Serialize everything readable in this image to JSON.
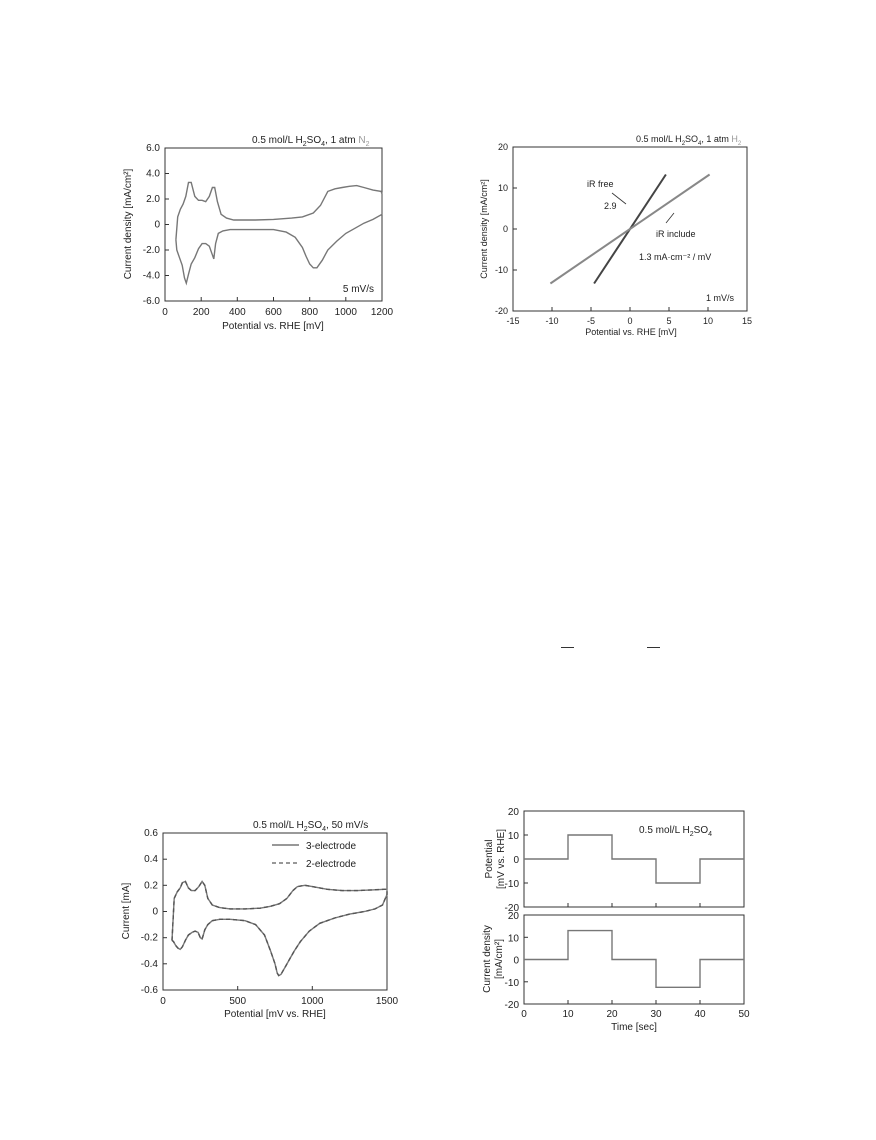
{
  "chart_data": [
    {
      "type": "line",
      "title": "0.5 mol/L H₂SO₄, 1 atm N₂",
      "title_parts": [
        "0.5 mol/L H",
        "2",
        "SO",
        "4",
        ", 1 atm ",
        "N",
        "2"
      ],
      "xlabel": "Potential vs. RHE [mV]",
      "ylabel": "Current density [mA/cm²]",
      "annotation": "5 mV/s",
      "xlim": [
        0,
        1200
      ],
      "ylim": [
        -6,
        6
      ],
      "x_ticks": [
        0,
        200,
        400,
        600,
        800,
        1000,
        1200
      ],
      "y_ticks": [
        -6,
        -4,
        -2,
        0,
        2,
        4,
        6
      ],
      "x_tick_labels": [
        "0",
        "200",
        "400",
        "600",
        "800",
        "1000",
        "1200"
      ],
      "y_tick_labels": [
        "-6.0",
        "-4.0",
        "-2.0",
        "0",
        "2.0",
        "4.0",
        "6.0"
      ],
      "series": [
        {
          "x": [
            60,
            70,
            85,
            100,
            115,
            130,
            145,
            165,
            185,
            205,
            225,
            245,
            262,
            275,
            290,
            310,
            340,
            380,
            420,
            500,
            600,
            700,
            760,
            820,
            860,
            900,
            940,
            980,
            1020,
            1060,
            1100,
            1150,
            1195,
            1200,
            1200,
            1150,
            1100,
            1050,
            1000,
            950,
            900,
            870,
            840,
            820,
            800,
            780,
            760,
            720,
            670,
            600,
            500,
            420,
            360,
            320,
            295,
            280,
            270,
            260,
            245,
            225,
            205,
            185,
            165,
            145,
            130,
            118,
            108,
            95,
            80,
            65,
            60
          ],
          "y": [
            -1.2,
            0.6,
            1.2,
            1.6,
            2.2,
            3.3,
            3.3,
            2.2,
            1.9,
            1.9,
            1.8,
            2.2,
            2.9,
            2.9,
            1.8,
            0.8,
            0.5,
            0.35,
            0.35,
            0.35,
            0.4,
            0.5,
            0.6,
            0.9,
            1.5,
            2.6,
            2.8,
            2.9,
            3.0,
            3.05,
            2.9,
            2.7,
            2.6,
            2.4,
            0.8,
            0.4,
            0.1,
            -0.3,
            -0.7,
            -1.3,
            -2.0,
            -2.8,
            -3.4,
            -3.4,
            -3.1,
            -2.5,
            -1.8,
            -1.0,
            -0.6,
            -0.4,
            -0.4,
            -0.4,
            -0.4,
            -0.5,
            -0.7,
            -1.5,
            -2.7,
            -2.3,
            -1.7,
            -1.5,
            -1.5,
            -1.9,
            -2.6,
            -3.1,
            -3.9,
            -4.6,
            -4.2,
            -3.2,
            -2.6,
            -2.0,
            -1.2
          ]
        }
      ]
    },
    {
      "type": "line",
      "title": "0.5 mol/L H₂SO₄, 1 atm H₂",
      "title_parts": [
        "0.5 mol/L H",
        "2",
        "SO",
        "4",
        ", 1 atm ",
        "H",
        "2"
      ],
      "xlabel": "Potential vs. RHE [mV]",
      "ylabel": "Current density [mA/cm²]",
      "annotation": "1 mV/s",
      "xlim": [
        -15,
        15
      ],
      "ylim": [
        -20,
        20
      ],
      "x_ticks": [
        -15,
        -10,
        -5,
        0,
        5,
        10,
        15
      ],
      "y_ticks": [
        -20,
        -10,
        0,
        10,
        20
      ],
      "x_tick_labels": [
        "-15",
        "-10",
        "-5",
        "0",
        "5",
        "10",
        "15"
      ],
      "y_tick_labels": [
        "-20",
        "-10",
        "0",
        "10",
        "20"
      ],
      "labels": [
        "iR free",
        "2.9",
        "iR include",
        "1.3 mA·cm⁻² / mV"
      ],
      "series": [
        {
          "x": [
            -4.6,
            4.6
          ],
          "y": [
            -13.3,
            13.3
          ]
        },
        {
          "x": [
            -10.2,
            10.2
          ],
          "y": [
            -13.3,
            13.3
          ]
        }
      ]
    },
    {
      "type": "line",
      "title": "0.5 mol/L H₂SO₄, 50 mV/s",
      "title_parts": [
        "0.5 mol/L H",
        "2",
        "SO",
        "4",
        ", 50 mV/s"
      ],
      "xlabel": "Potential [mV vs. RHE]",
      "ylabel": "Current [mA]",
      "xlim": [
        0,
        1500
      ],
      "ylim": [
        -0.6,
        0.6
      ],
      "x_ticks": [
        0,
        500,
        1000,
        1500
      ],
      "y_ticks": [
        -0.6,
        -0.4,
        -0.2,
        0,
        0.2,
        0.4,
        0.6
      ],
      "x_tick_labels": [
        "0",
        "500",
        "1000",
        "1500"
      ],
      "y_tick_labels": [
        "-0.6",
        "-0.4",
        "-0.2",
        "0",
        "0.2",
        "0.4",
        "0.6"
      ],
      "legend": [
        "3-electrode",
        "2-electrode"
      ],
      "series": [
        {
          "name": "3-electrode",
          "x": [
            60,
            75,
            95,
            115,
            130,
            150,
            170,
            190,
            215,
            240,
            262,
            280,
            300,
            330,
            380,
            450,
            550,
            650,
            720,
            780,
            830,
            870,
            900,
            950,
            1000,
            1100,
            1200,
            1300,
            1400,
            1480,
            1500,
            1500,
            1470,
            1420,
            1350,
            1250,
            1150,
            1050,
            980,
            920,
            880,
            850,
            820,
            800,
            790,
            775,
            765,
            750,
            720,
            680,
            620,
            550,
            450,
            380,
            330,
            300,
            280,
            270,
            262,
            250,
            235,
            215,
            195,
            170,
            150,
            130,
            115,
            100,
            85,
            70,
            60
          ],
          "y": [
            -0.22,
            0.1,
            0.15,
            0.18,
            0.22,
            0.23,
            0.18,
            0.16,
            0.16,
            0.19,
            0.23,
            0.2,
            0.1,
            0.05,
            0.03,
            0.02,
            0.02,
            0.025,
            0.04,
            0.06,
            0.1,
            0.16,
            0.19,
            0.2,
            0.19,
            0.17,
            0.16,
            0.16,
            0.165,
            0.17,
            0.17,
            0.13,
            0.05,
            0.02,
            0.0,
            -0.02,
            -0.05,
            -0.09,
            -0.15,
            -0.23,
            -0.3,
            -0.36,
            -0.42,
            -0.46,
            -0.48,
            -0.49,
            -0.47,
            -0.4,
            -0.3,
            -0.18,
            -0.1,
            -0.07,
            -0.06,
            -0.06,
            -0.07,
            -0.1,
            -0.14,
            -0.18,
            -0.21,
            -0.2,
            -0.16,
            -0.15,
            -0.16,
            -0.18,
            -0.22,
            -0.27,
            -0.29,
            -0.28,
            -0.26,
            -0.23,
            -0.22
          ]
        },
        {
          "name": "2-electrode",
          "x": [
            60,
            75,
            95,
            115,
            130,
            150,
            170,
            190,
            215,
            240,
            262,
            280,
            300,
            330,
            380,
            450,
            550,
            650,
            720,
            780,
            830,
            870,
            900,
            950,
            1000,
            1100,
            1200,
            1300,
            1400,
            1480,
            1500,
            1500,
            1470,
            1420,
            1350,
            1250,
            1150,
            1050,
            980,
            920,
            880,
            850,
            820,
            800,
            790,
            775,
            765,
            750,
            720,
            680,
            620,
            550,
            450,
            380,
            330,
            300,
            280,
            270,
            262,
            250,
            235,
            215,
            195,
            170,
            150,
            130,
            115,
            100,
            85,
            70,
            60
          ],
          "y": [
            -0.22,
            0.1,
            0.15,
            0.18,
            0.22,
            0.23,
            0.18,
            0.16,
            0.16,
            0.19,
            0.23,
            0.2,
            0.1,
            0.05,
            0.03,
            0.02,
            0.02,
            0.025,
            0.04,
            0.06,
            0.1,
            0.16,
            0.19,
            0.2,
            0.19,
            0.17,
            0.16,
            0.16,
            0.165,
            0.17,
            0.17,
            0.13,
            0.05,
            0.02,
            0.0,
            -0.02,
            -0.05,
            -0.09,
            -0.15,
            -0.23,
            -0.3,
            -0.36,
            -0.42,
            -0.46,
            -0.48,
            -0.49,
            -0.47,
            -0.4,
            -0.3,
            -0.18,
            -0.1,
            -0.07,
            -0.06,
            -0.06,
            -0.07,
            -0.1,
            -0.14,
            -0.18,
            -0.21,
            -0.2,
            -0.16,
            -0.15,
            -0.16,
            -0.18,
            -0.22,
            -0.27,
            -0.29,
            -0.28,
            -0.26,
            -0.23,
            -0.22
          ]
        }
      ]
    },
    {
      "type": "line",
      "title": "0.5 mol/L H₂SO₄",
      "title_parts": [
        "0.5 mol/L H",
        "2",
        "SO",
        "4"
      ],
      "xlabel": "",
      "ylabel": "Potential [mV vs. RHE]",
      "ylabel_lines": [
        "Potential",
        "[mV vs. RHE]"
      ],
      "xlim": [
        0,
        50
      ],
      "ylim": [
        -20,
        20
      ],
      "y_ticks": [
        -20,
        -10,
        0,
        10,
        20
      ],
      "y_tick_labels": [
        "-20",
        "-10",
        "0",
        "10",
        "20"
      ],
      "series": [
        {
          "x": [
            0,
            10,
            10,
            20,
            20,
            30,
            30,
            40,
            40,
            50
          ],
          "y": [
            0,
            0,
            10,
            10,
            0,
            0,
            -10,
            -10,
            0,
            0
          ]
        }
      ]
    },
    {
      "type": "line",
      "title": "",
      "xlabel": "Time [sec]",
      "ylabel": "Current density [mA/cm²]",
      "ylabel_lines": [
        "Current density",
        "[mA/cm²]"
      ],
      "xlim": [
        0,
        50
      ],
      "ylim": [
        -20,
        20
      ],
      "x_ticks": [
        0,
        10,
        20,
        30,
        40,
        50
      ],
      "y_ticks": [
        -20,
        -10,
        0,
        10,
        20
      ],
      "x_tick_labels": [
        "0",
        "10",
        "20",
        "30",
        "40",
        "50"
      ],
      "y_tick_labels": [
        "-20",
        "-10",
        "0",
        "10",
        "20"
      ],
      "series": [
        {
          "x": [
            0,
            10,
            10,
            20,
            20,
            30,
            30,
            40,
            40,
            50
          ],
          "y": [
            0,
            0,
            13,
            13,
            0,
            0,
            -12.5,
            -12.5,
            0,
            0
          ]
        }
      ]
    }
  ],
  "colors": {
    "curve": "#777777",
    "n2_h2_tint": "#999999"
  }
}
